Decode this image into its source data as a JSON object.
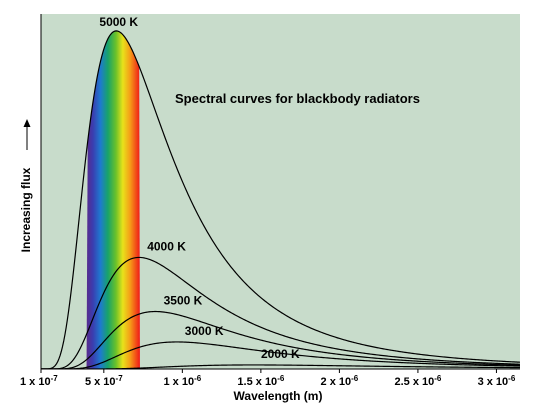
{
  "chart_data": {
    "type": "line",
    "title": "Spectral curves for blackbody radiators",
    "xlabel": "Wavelength (m)",
    "ylabel": "Increasing flux",
    "xlim": [
      1e-07,
      3.15e-06
    ],
    "ylim": [
      0,
      1.05
    ],
    "x_ticks": [
      {
        "value": 1e-07,
        "mantissa": "1 x 10",
        "exp": "-7"
      },
      {
        "value": 5e-07,
        "mantissa": "5 x 10",
        "exp": "-7"
      },
      {
        "value": 1e-06,
        "mantissa": "1 x 10",
        "exp": "-6"
      },
      {
        "value": 1.5e-06,
        "mantissa": "1.5 x 10",
        "exp": "-6"
      },
      {
        "value": 2e-06,
        "mantissa": "2 x 10",
        "exp": "-6"
      },
      {
        "value": 2.5e-06,
        "mantissa": "2.5 x 10",
        "exp": "-6"
      },
      {
        "value": 3e-06,
        "mantissa": "3 x 10",
        "exp": "-6"
      }
    ],
    "grid": false,
    "visible_band": {
      "from": 3.9e-07,
      "to": 7.3e-07
    },
    "series": [
      {
        "name": "5000 K",
        "temperature": 5000,
        "peak_x": 5.8e-07,
        "peak_y": 1.0
      },
      {
        "name": "4000 K",
        "temperature": 4000,
        "peak_x": 7.25e-07,
        "peak_y": 0.33
      },
      {
        "name": "3500 K",
        "temperature": 3500,
        "peak_x": 8.3e-07,
        "peak_y": 0.17
      },
      {
        "name": "3000 K",
        "temperature": 3000,
        "peak_x": 9.65e-07,
        "peak_y": 0.08
      },
      {
        "name": "2000 K",
        "temperature": 2000,
        "peak_x": 1.45e-06,
        "peak_y": 0.012
      }
    ],
    "colors": {
      "plot_background": "#c8dccb",
      "curve": "#000000",
      "text": "#000000"
    }
  }
}
